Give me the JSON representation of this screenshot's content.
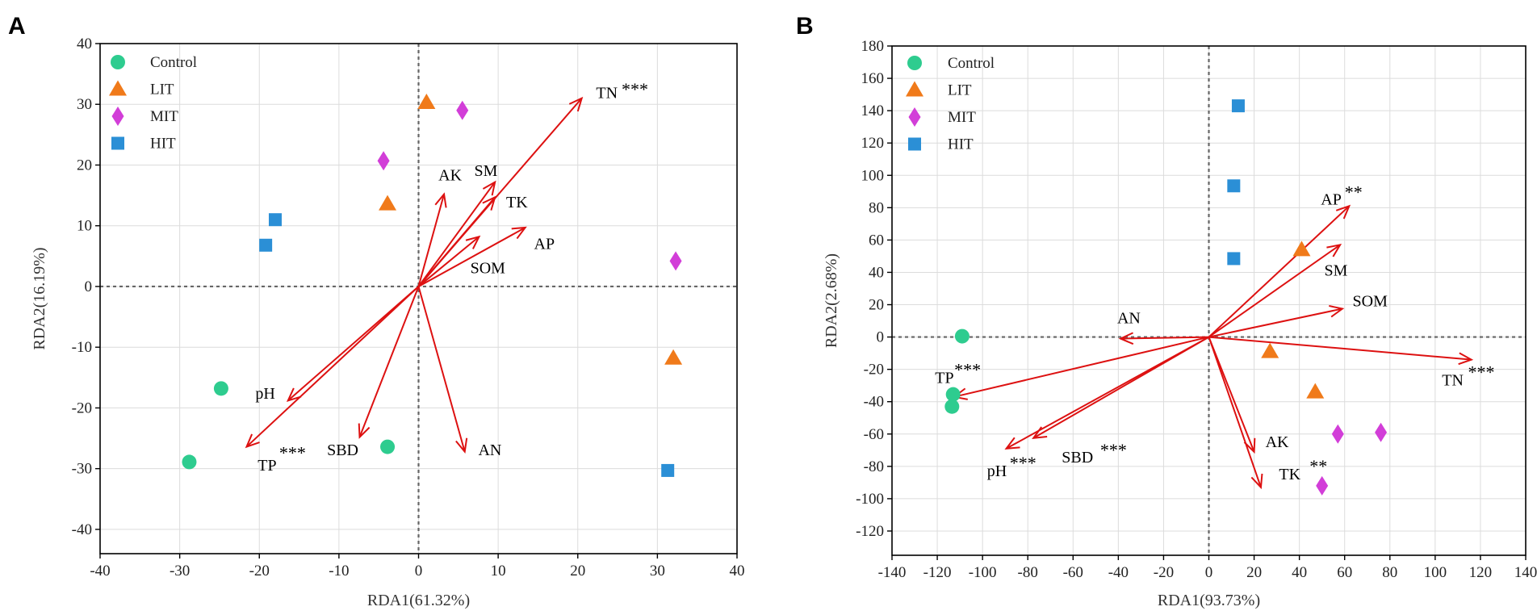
{
  "chart_data": [
    {
      "type": "scatter",
      "panel": "A",
      "xlabel": "RDA1(61.32%)",
      "ylabel": "RDA2(16.19%)",
      "xlim": [
        -40,
        40
      ],
      "ylim": [
        -44,
        40
      ],
      "xticks": [
        -40,
        -30,
        -20,
        -10,
        0,
        10,
        20,
        30,
        40
      ],
      "yticks": [
        40,
        30,
        20,
        10,
        0,
        -10,
        -20,
        -30,
        -40
      ],
      "grid": true,
      "legend_position": "top-left",
      "colors": {
        "Control": "#2ecc8f",
        "LIT": "#f07a1a",
        "MIT": "#d23ed8",
        "HIT": "#2b8fd6",
        "vector": "#dd1111"
      },
      "series": [
        {
          "name": "Control",
          "marker": "circle",
          "points": [
            [
              -24.8,
              -16.8
            ],
            [
              -28.8,
              -28.9
            ],
            [
              -3.9,
              -26.4
            ]
          ]
        },
        {
          "name": "LIT",
          "marker": "triangle",
          "points": [
            [
              1.0,
              30.3
            ],
            [
              -3.9,
              13.6
            ],
            [
              32.0,
              -11.8
            ]
          ]
        },
        {
          "name": "MIT",
          "marker": "diamond",
          "points": [
            [
              5.5,
              29.0
            ],
            [
              -4.4,
              20.7
            ],
            [
              32.3,
              4.2
            ]
          ]
        },
        {
          "name": "HIT",
          "marker": "square",
          "points": [
            [
              -19.2,
              6.8
            ],
            [
              -18.0,
              11.0
            ],
            [
              31.3,
              -30.3
            ]
          ]
        }
      ],
      "vectors": [
        {
          "name": "TN",
          "sig": "***",
          "end": [
            20.5,
            31.0
          ],
          "label_at": [
            22.3,
            31.0
          ],
          "sig_at": [
            25.5,
            31.5
          ]
        },
        {
          "name": "AK",
          "sig": "",
          "end": [
            3.2,
            15.2
          ],
          "label_at": [
            2.5,
            17.5
          ],
          "sig_at": null
        },
        {
          "name": "SM",
          "sig": "",
          "end": [
            9.6,
            17.2
          ],
          "label_at": [
            7.0,
            18.2
          ],
          "sig_at": null
        },
        {
          "name": "TK",
          "sig": "",
          "end": [
            9.6,
            14.7
          ],
          "label_at": [
            11.0,
            13.0
          ],
          "sig_at": null
        },
        {
          "name": "SOM",
          "sig": "",
          "end": [
            7.6,
            8.2
          ],
          "label_at": [
            6.5,
            2.2
          ],
          "sig_at": null
        },
        {
          "name": "AP",
          "sig": "",
          "end": [
            13.4,
            9.7
          ],
          "label_at": [
            14.5,
            6.2
          ],
          "sig_at": null
        },
        {
          "name": "pH",
          "sig": "",
          "end": [
            -16.4,
            -18.8
          ],
          "label_at": [
            -20.5,
            -18.5
          ],
          "sig_at": null
        },
        {
          "name": "TP",
          "sig": "***",
          "end": [
            -21.6,
            -26.4
          ],
          "label_at": [
            -20.2,
            -30.3
          ],
          "sig_at": [
            -17.5,
            -28.4
          ]
        },
        {
          "name": "SBD",
          "sig": "",
          "end": [
            -7.4,
            -24.8
          ],
          "label_at": [
            -11.5,
            -27.8
          ],
          "sig_at": null
        },
        {
          "name": "AN",
          "sig": "",
          "end": [
            5.8,
            -27.2
          ],
          "label_at": [
            7.5,
            -27.8
          ],
          "sig_at": null
        }
      ]
    },
    {
      "type": "scatter",
      "panel": "B",
      "xlabel": "RDA1(93.73%)",
      "ylabel": "RDA2(2.68%)",
      "xlim": [
        -140,
        140
      ],
      "ylim": [
        -135,
        180
      ],
      "xticks": [
        -140,
        -120,
        -100,
        -80,
        -60,
        -40,
        -20,
        0,
        20,
        40,
        60,
        80,
        100,
        120,
        140
      ],
      "yticks": [
        180,
        160,
        140,
        120,
        100,
        80,
        60,
        40,
        20,
        0,
        -20,
        -40,
        -60,
        -80,
        -100,
        -120
      ],
      "grid": true,
      "legend_position": "top-left",
      "colors": {
        "Control": "#2ecc8f",
        "LIT": "#f07a1a",
        "MIT": "#d23ed8",
        "HIT": "#2b8fd6",
        "vector": "#dd1111"
      },
      "series": [
        {
          "name": "Control",
          "marker": "circle",
          "points": [
            [
              -109.0,
              0.5
            ],
            [
              -113.0,
              -35.5
            ],
            [
              -113.5,
              -43.0
            ]
          ]
        },
        {
          "name": "LIT",
          "marker": "triangle",
          "points": [
            [
              41.0,
              54.0
            ],
            [
              27.0,
              -9.0
            ],
            [
              47.0,
              -34.0
            ]
          ]
        },
        {
          "name": "MIT",
          "marker": "diamond",
          "points": [
            [
              57.0,
              -60.0
            ],
            [
              76.0,
              -59.0
            ],
            [
              50.0,
              -92.0
            ]
          ]
        },
        {
          "name": "HIT",
          "marker": "square",
          "points": [
            [
              13.0,
              143.0
            ],
            [
              11.0,
              93.5
            ],
            [
              11.0,
              48.5
            ]
          ]
        }
      ],
      "vectors": [
        {
          "name": "AP",
          "sig": "**",
          "end": [
            62.0,
            81.0
          ],
          "label_at": [
            49.5,
            82.0
          ],
          "sig_at": [
            60.0,
            86.0
          ]
        },
        {
          "name": "SM",
          "sig": "",
          "end": [
            58.0,
            57.0
          ],
          "label_at": [
            51.0,
            38.0
          ],
          "sig_at": null
        },
        {
          "name": "SOM",
          "sig": "",
          "end": [
            59.0,
            17.5
          ],
          "label_at": [
            63.5,
            19.0
          ],
          "sig_at": null
        },
        {
          "name": "TN",
          "sig": "***",
          "end": [
            116.0,
            -14.0
          ],
          "label_at": [
            103.0,
            -30.0
          ],
          "sig_at": [
            114.5,
            -25.5
          ]
        },
        {
          "name": "AN",
          "sig": "",
          "end": [
            -39.0,
            -1.0
          ],
          "label_at": [
            -40.5,
            8.5
          ],
          "sig_at": null
        },
        {
          "name": "TP",
          "sig": "***",
          "end": [
            -112.5,
            -37.0
          ],
          "label_at": [
            -121.0,
            -28.5
          ],
          "sig_at": [
            -112.5,
            -24.0
          ]
        },
        {
          "name": "pH",
          "sig": "***",
          "end": [
            -89.5,
            -69.0
          ],
          "label_at": [
            -98.0,
            -86.0
          ],
          "sig_at": [
            -88.0,
            -81.5
          ]
        },
        {
          "name": "SBD",
          "sig": "***",
          "end": [
            -77.5,
            -62.5
          ],
          "label_at": [
            -65.0,
            -77.5
          ],
          "sig_at": [
            -48.0,
            -73.5
          ]
        },
        {
          "name": "AK",
          "sig": "",
          "end": [
            20.0,
            -71.0
          ],
          "label_at": [
            25.0,
            -68.0
          ],
          "sig_at": null
        },
        {
          "name": "TK",
          "sig": "**",
          "end": [
            23.0,
            -93.0
          ],
          "label_at": [
            31.0,
            -88.0
          ],
          "sig_at": [
            44.5,
            -83.5
          ]
        }
      ]
    }
  ]
}
